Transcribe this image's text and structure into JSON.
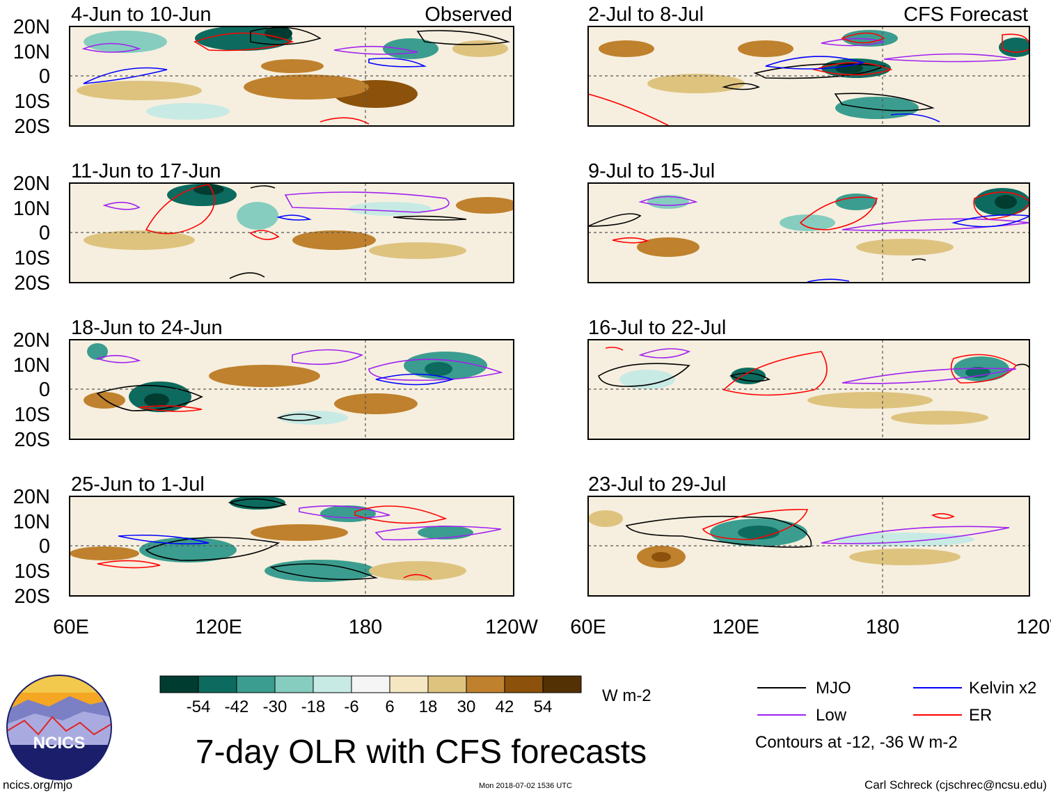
{
  "panels": [
    {
      "label": "4-Jun to 10-Jun",
      "tag": "Observed"
    },
    {
      "label": "11-Jun to 17-Jun",
      "tag": ""
    },
    {
      "label": "18-Jun to 24-Jun",
      "tag": ""
    },
    {
      "label": "25-Jun to 1-Jul",
      "tag": ""
    },
    {
      "label": "2-Jul to 8-Jul",
      "tag": "CFS Forecast"
    },
    {
      "label": "9-Jul to 15-Jul",
      "tag": ""
    },
    {
      "label": "16-Jul to 22-Jul",
      "tag": ""
    },
    {
      "label": "23-Jul to 29-Jul",
      "tag": ""
    }
  ],
  "lat_labels": [
    "20N",
    "10N",
    "0",
    "10S",
    "20S"
  ],
  "lon_labels": [
    "60E",
    "120E",
    "180",
    "120W"
  ],
  "colorbar": {
    "colors": [
      "#013c30",
      "#0c6b5e",
      "#3b9d8f",
      "#86cdbf",
      "#c7eae4",
      "#f5f5f5",
      "#f6e7c3",
      "#dec37f",
      "#bf812d",
      "#8c510a",
      "#543005"
    ],
    "labels": [
      "-54",
      "-42",
      "-30",
      "-18",
      "-6",
      "6",
      "18",
      "30",
      "42",
      "54"
    ],
    "units": "W m-2"
  },
  "legend": {
    "items": [
      {
        "label": "MJO",
        "color": "#000000"
      },
      {
        "label": "Kelvin x2",
        "color": "#0000ff"
      },
      {
        "label": "Low",
        "color": "#a020f0"
      },
      {
        "label": "ER",
        "color": "#ff0000"
      }
    ],
    "note": "Contours at -12, -36 W m-2"
  },
  "title": "7-day OLR with CFS forecasts",
  "logo_text": "NCICS",
  "footer": {
    "url": "ncics.org/mjo",
    "timestamp": "Mon 2018-07-02 1536 UTC",
    "author": "Carl Schreck (cjschrec@ncsu.edu)"
  }
}
